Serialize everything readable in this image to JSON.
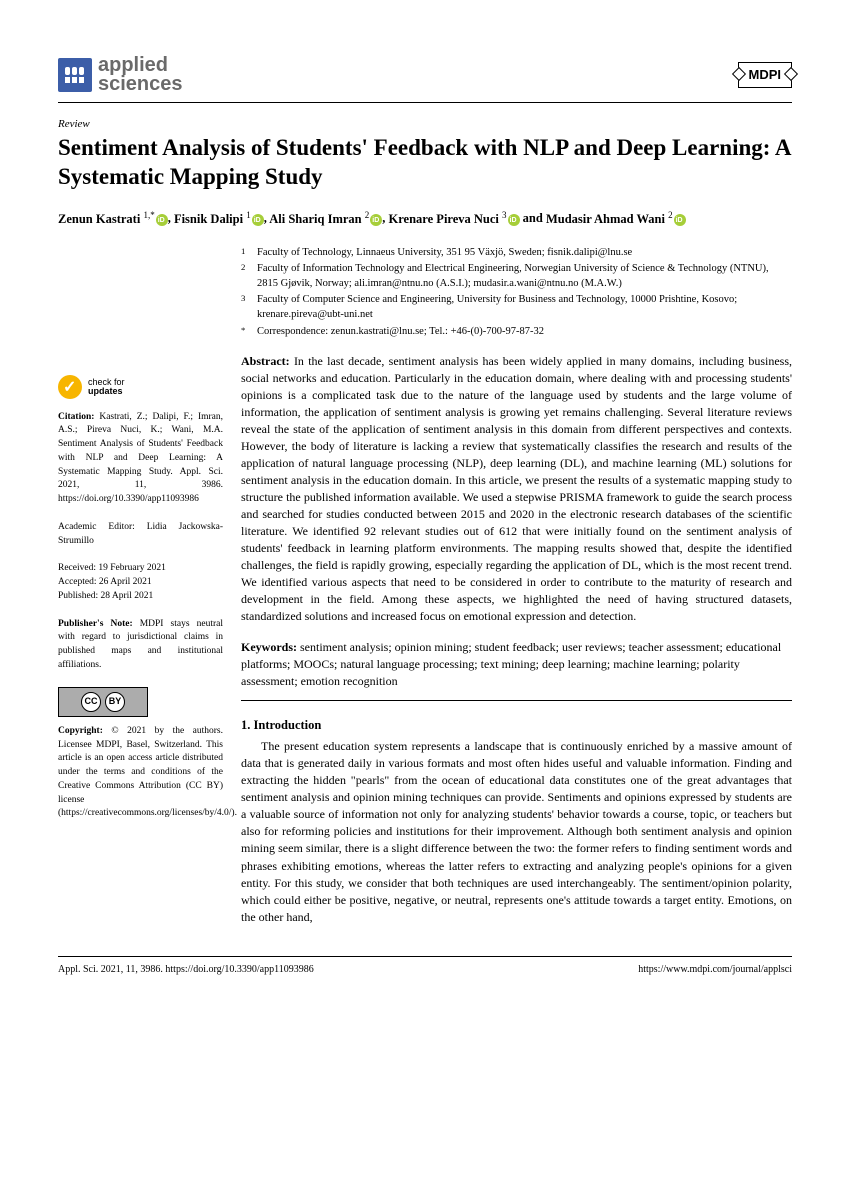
{
  "journal": {
    "name_line1": "applied",
    "name_line2": "sciences",
    "publisher": "MDPI"
  },
  "article": {
    "type": "Review",
    "title": "Sentiment Analysis of Students' Feedback with NLP and Deep Learning: A Systematic Mapping Study"
  },
  "authors_html": "Zenun Kastrati <sup>1,</sup>*, Fisnik Dalipi <sup>1</sup>, Ali Shariq Imran <sup>2</sup>, Krenare Pireva Nuci <sup>3</sup> and Mudasir Ahmad Wani <sup>2</sup>",
  "authors": [
    {
      "name": "Zenun Kastrati",
      "sup": "1,*",
      "orcid": true
    },
    {
      "name": "Fisnik Dalipi",
      "sup": "1",
      "orcid": true
    },
    {
      "name": "Ali Shariq Imran",
      "sup": "2",
      "orcid": true
    },
    {
      "name": "Krenare Pireva Nuci",
      "sup": "3",
      "orcid": true
    },
    {
      "name": "Mudasir Ahmad Wani",
      "sup": "2",
      "orcid": true
    }
  ],
  "affiliations": [
    {
      "num": "1",
      "text": "Faculty of Technology, Linnaeus University, 351 95 Växjö, Sweden; fisnik.dalipi@lnu.se"
    },
    {
      "num": "2",
      "text": "Faculty of Information Technology and Electrical Engineering, Norwegian University of Science & Technology (NTNU), 2815 Gjøvik, Norway; ali.imran@ntnu.no (A.S.I.); mudasir.a.wani@ntnu.no (M.A.W.)"
    },
    {
      "num": "3",
      "text": "Faculty of Computer Science and Engineering, University for Business and Technology, 10000 Prishtine, Kosovo; krenare.pireva@ubt-uni.net"
    },
    {
      "num": "*",
      "text": "Correspondence: zenun.kastrati@lnu.se; Tel.: +46-(0)-700-97-87-32"
    }
  ],
  "abstract": "In the last decade, sentiment analysis has been widely applied in many domains, including business, social networks and education. Particularly in the education domain, where dealing with and processing students' opinions is a complicated task due to the nature of the language used by students and the large volume of information, the application of sentiment analysis is growing yet remains challenging. Several literature reviews reveal the state of the application of sentiment analysis in this domain from different perspectives and contexts. However, the body of literature is lacking a review that systematically classifies the research and results of the application of natural language processing (NLP), deep learning (DL), and machine learning (ML) solutions for sentiment analysis in the education domain. In this article, we present the results of a systematic mapping study to structure the published information available. We used a stepwise PRISMA framework to guide the search process and searched for studies conducted between 2015 and 2020 in the electronic research databases of the scientific literature. We identified 92 relevant studies out of 612 that were initially found on the sentiment analysis of students' feedback in learning platform environments. The mapping results showed that, despite the identified challenges, the field is rapidly growing, especially regarding the application of DL, which is the most recent trend. We identified various aspects that need to be considered in order to contribute to the maturity of research and development in the field. Among these aspects, we highlighted the need of having structured datasets, standardized solutions and increased focus on emotional expression and detection.",
  "keywords": "sentiment analysis; opinion mining; student feedback; user reviews; teacher assessment; educational platforms; MOOCs; natural language processing; text mining; deep learning; machine learning; polarity assessment; emotion recognition",
  "sidebar": {
    "check_line1": "check for",
    "check_line2": "updates",
    "citation": "Kastrati, Z.; Dalipi, F.; Imran, A.S.; Pireva Nuci, K.; Wani, M.A. Sentiment Analysis of Students' Feedback with NLP and Deep Learning: A Systematic Mapping Study. Appl. Sci. 2021, 11, 3986. https://doi.org/10.3390/app11093986",
    "editor": "Academic Editor: Lidia Jackowska-Strumillo",
    "received": "Received: 19 February 2021",
    "accepted": "Accepted: 26 April 2021",
    "published": "Published: 28 April 2021",
    "pubnote": "Publisher's Note: MDPI stays neutral with regard to jurisdictional claims in published maps and institutional affiliations.",
    "copyright": "© 2021 by the authors. Licensee MDPI, Basel, Switzerland. This article is an open access article distributed under the terms and conditions of the Creative Commons Attribution (CC BY) license (https://creativecommons.org/licenses/by/4.0/)."
  },
  "section1": {
    "heading": "1. Introduction",
    "para1": "The present education system represents a landscape that is continuously enriched by a massive amount of data that is generated daily in various formats and most often hides useful and valuable information. Finding and extracting the hidden \"pearls\" from the ocean of educational data constitutes one of the great advantages that sentiment analysis and opinion mining techniques can provide. Sentiments and opinions expressed by students are a valuable source of information not only for analyzing students' behavior towards a course, topic, or teachers but also for reforming policies and institutions for their improvement. Although both sentiment analysis and opinion mining seem similar, there is a slight difference between the two: the former refers to finding sentiment words and phrases exhibiting emotions, whereas the latter refers to extracting and analyzing people's opinions for a given entity. For this study, we consider that both techniques are used interchangeably. The sentiment/opinion polarity, which could either be positive, negative, or neutral, represents one's attitude towards a target entity. Emotions, on the other hand,"
  },
  "footer": {
    "left": "Appl. Sci. 2021, 11, 3986. https://doi.org/10.3390/app11093986",
    "right": "https://www.mdpi.com/journal/applsci"
  },
  "colors": {
    "brand_blue": "#3c5ea8",
    "orcid_green": "#a6ce39",
    "check_yellow": "#f7b500",
    "text_gray": "#6a6a6a"
  }
}
